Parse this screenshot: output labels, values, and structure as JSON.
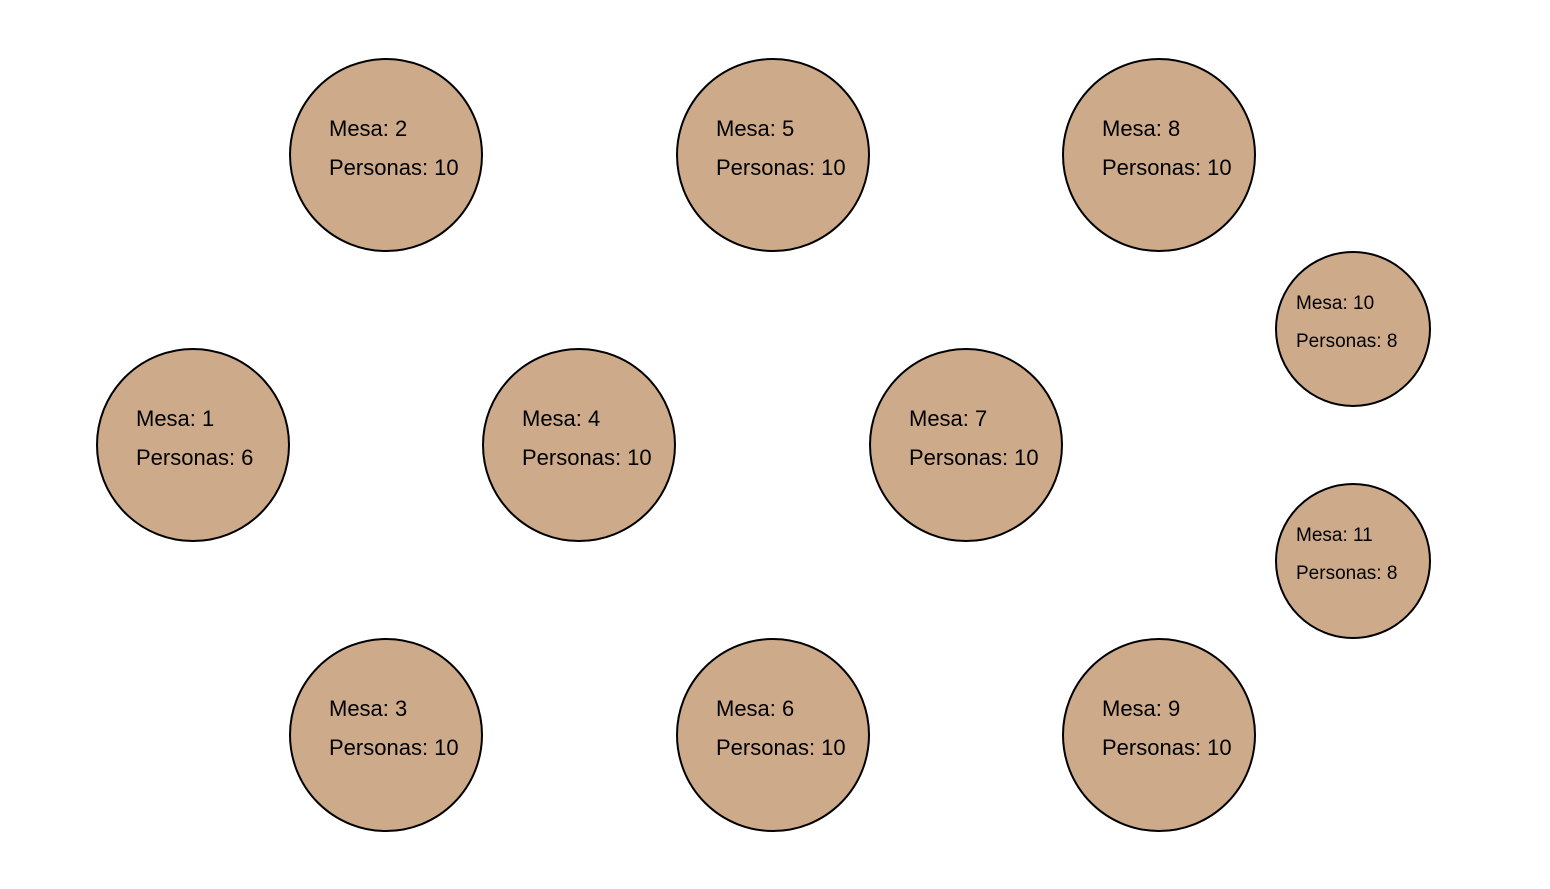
{
  "colors": {
    "table_fill": "#cdaa8a",
    "table_border": "#000000",
    "background": "#ffffff"
  },
  "tables": [
    {
      "mesa": "Mesa: 1",
      "personas": "Personas: 6"
    },
    {
      "mesa": "Mesa: 2",
      "personas": "Personas: 10"
    },
    {
      "mesa": "Mesa: 3",
      "personas": "Personas: 10"
    },
    {
      "mesa": "Mesa: 4",
      "personas": "Personas: 10"
    },
    {
      "mesa": "Mesa: 5",
      "personas": "Personas: 10"
    },
    {
      "mesa": "Mesa: 6",
      "personas": "Personas: 10"
    },
    {
      "mesa": "Mesa: 7",
      "personas": "Personas: 10"
    },
    {
      "mesa": "Mesa: 8",
      "personas": "Personas: 10"
    },
    {
      "mesa": "Mesa: 9",
      "personas": "Personas: 10"
    },
    {
      "mesa": "Mesa: 10",
      "personas": "Personas: 8"
    },
    {
      "mesa": "Mesa: 11",
      "personas": "Personas: 8"
    }
  ]
}
